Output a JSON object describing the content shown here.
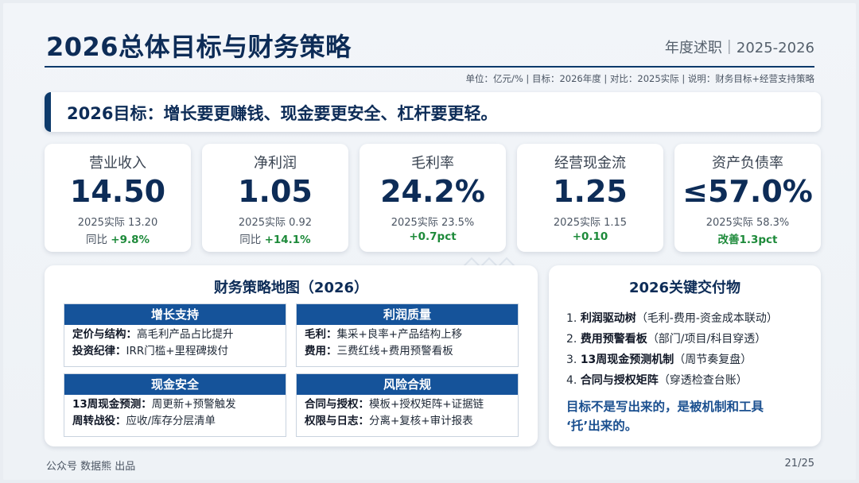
{
  "header": {
    "title": "2026总体目标与财务策略",
    "subtitle": "年度述职｜2025-2026",
    "note": "单位：亿元/% | 目标：2026年度 | 对比：2025实际 | 说明：财务目标+经营支持策略"
  },
  "banner": {
    "text": "2026目标：增长要更赚钱、现金要更安全、杠杆要更轻。"
  },
  "kpis": [
    {
      "label": "营业收入",
      "value": "14.50",
      "actual": "2025实际 13.20",
      "change_prefix": "同比",
      "change": "+9.8%"
    },
    {
      "label": "净利润",
      "value": "1.05",
      "actual": "2025实际 0.92",
      "change_prefix": "同比",
      "change": "+14.1%"
    },
    {
      "label": "毛利率",
      "value": "24.2%",
      "actual": "2025实际 23.5%",
      "change_prefix": "",
      "change": "+0.7pct"
    },
    {
      "label": "经营现金流",
      "value": "1.25",
      "actual": "2025实际 1.15",
      "change_prefix": "",
      "change": "+0.10"
    },
    {
      "label": "资产负债率",
      "value": "≤57.0%",
      "actual": "2025实际 58.3%",
      "change_prefix": "",
      "change": "改善1.3pct"
    }
  ],
  "strategy_map": {
    "title": "财务策略地图（2026）",
    "quadrants": [
      {
        "header": "增长支持",
        "rows": [
          {
            "key": "定价与结构：",
            "text": "高毛利产品占比提升"
          },
          {
            "key": "投资纪律：",
            "text": "IRR门槛+里程碑拨付"
          }
        ]
      },
      {
        "header": "利润质量",
        "rows": [
          {
            "key": "毛利：",
            "text": "集采+良率+产品结构上移"
          },
          {
            "key": "费用：",
            "text": "三费红线+费用预警看板"
          }
        ]
      },
      {
        "header": "现金安全",
        "rows": [
          {
            "key": "13周现金预测：",
            "text": "周更新+预警触发"
          },
          {
            "key": "周转战役：",
            "text": "应收/库存分层清单"
          }
        ]
      },
      {
        "header": "风险合规",
        "rows": [
          {
            "key": "合同与授权：",
            "text": "模板+授权矩阵+证据链"
          },
          {
            "key": "权限与日志：",
            "text": "分离+复核+审计报表"
          }
        ]
      }
    ]
  },
  "deliverables": {
    "title": "2026关键交付物",
    "items": [
      {
        "num": "1.",
        "key": "利润驱动树",
        "text": "（毛利-费用-资金成本联动）"
      },
      {
        "num": "2.",
        "key": "费用预警看板",
        "text": "（部门/项目/科目穿透）"
      },
      {
        "num": "3.",
        "key": "13周现金预测机制",
        "text": "（周节奏复盘）"
      },
      {
        "num": "4.",
        "key": "合同与授权矩阵",
        "text": "（穿透检查台账）"
      }
    ],
    "footer_line1": "目标不是写出来的，是被机制和工具",
    "footer_line2": "‘托’出来的。"
  },
  "footer": {
    "left": "公众号 数据熊 出品",
    "page": "21/25"
  },
  "colors": {
    "navy": "#0d2c57",
    "header_blue": "#15539a",
    "positive": "#1d8a3a"
  }
}
